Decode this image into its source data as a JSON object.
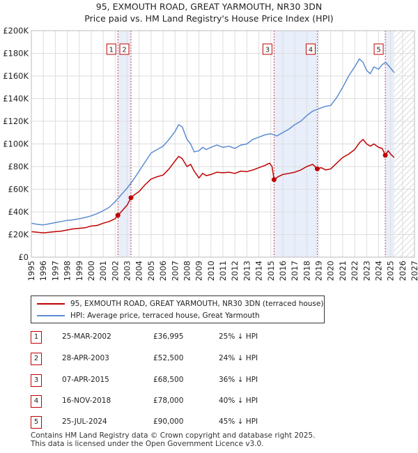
{
  "title_line1": "95, EXMOUTH ROAD, GREAT YARMOUTH, NR30 3DN",
  "title_line2": "Price paid vs. HM Land Registry's House Price Index (HPI)",
  "colors": {
    "hpi": "#5b8bd0",
    "price": "#c00000",
    "shade": "#e8eefa",
    "grid": "#dddddd"
  },
  "chart_data": {
    "type": "line",
    "title": "95, EXMOUTH ROAD, GREAT YARMOUTH, NR30 3DN — Price paid vs. HM Land Registry's House Price Index (HPI)",
    "xlabel": "",
    "ylabel": "",
    "xlim": [
      1995,
      2027
    ],
    "ylim": [
      0,
      200000
    ],
    "y_ticks": [
      0,
      20000,
      40000,
      60000,
      80000,
      100000,
      120000,
      140000,
      160000,
      180000,
      200000
    ],
    "y_tick_labels": [
      "£0",
      "£20K",
      "£40K",
      "£60K",
      "£80K",
      "£100K",
      "£120K",
      "£140K",
      "£160K",
      "£180K",
      "£200K"
    ],
    "x_ticks": [
      1995,
      1996,
      1997,
      1998,
      1999,
      2000,
      2001,
      2002,
      2003,
      2004,
      2005,
      2006,
      2007,
      2008,
      2009,
      2010,
      2011,
      2012,
      2013,
      2014,
      2015,
      2016,
      2017,
      2018,
      2019,
      2020,
      2021,
      2022,
      2023,
      2024,
      2025,
      2026,
      2027
    ],
    "x_tick_labels": [
      "1995",
      "1996",
      "1997",
      "1998",
      "1999",
      "2000",
      "2001",
      "2002",
      "2003",
      "2004",
      "2005",
      "2006",
      "2007",
      "2008",
      "2009",
      "2010",
      "2011",
      "2012",
      "2013",
      "2014",
      "2015",
      "2016",
      "2017",
      "2018",
      "2019",
      "2020",
      "2021",
      "2022",
      "2023",
      "2024",
      "2025",
      "2026",
      "2027"
    ],
    "shaded_spans": [
      [
        2002.23,
        2003.32
      ],
      [
        2015.27,
        2018.88
      ],
      [
        2024.56,
        2025.3
      ]
    ],
    "future_hatch_from": 2025.3,
    "series": [
      {
        "name": "95, EXMOUTH ROAD, GREAT YARMOUTH, NR30 3DN (terraced house)",
        "x": [
          1995.0,
          1995.5,
          1996.0,
          1996.5,
          1997.0,
          1997.5,
          1998.0,
          1998.5,
          1999.0,
          1999.5,
          2000.0,
          2000.5,
          2001.0,
          2001.5,
          2002.0,
          2002.23,
          2002.5,
          2003.0,
          2003.32,
          2003.6,
          2004.0,
          2004.5,
          2005.0,
          2005.5,
          2006.0,
          2006.5,
          2007.0,
          2007.3,
          2007.6,
          2008.0,
          2008.3,
          2008.6,
          2009.0,
          2009.3,
          2009.6,
          2010.0,
          2010.5,
          2011.0,
          2011.5,
          2012.0,
          2012.5,
          2013.0,
          2013.5,
          2014.0,
          2014.5,
          2014.9,
          2015.1,
          2015.27,
          2015.6,
          2016.0,
          2016.5,
          2017.0,
          2017.5,
          2018.0,
          2018.5,
          2018.88,
          2019.2,
          2019.6,
          2020.0,
          2020.5,
          2021.0,
          2021.5,
          2022.0,
          2022.4,
          2022.7,
          2023.0,
          2023.3,
          2023.6,
          2024.0,
          2024.3,
          2024.56,
          2024.8,
          2025.0,
          2025.3
        ],
        "values": [
          22500,
          22000,
          21500,
          22000,
          22500,
          23000,
          24000,
          25000,
          25500,
          26000,
          27500,
          28000,
          30000,
          31500,
          34000,
          36995,
          40000,
          46000,
          52500,
          55000,
          58000,
          64000,
          69000,
          71000,
          72500,
          78000,
          85000,
          89000,
          87000,
          80000,
          82000,
          76000,
          70000,
          74000,
          72000,
          73000,
          75000,
          74500,
          75000,
          74000,
          76000,
          75500,
          77000,
          79000,
          81000,
          83000,
          80000,
          68500,
          71000,
          73000,
          74000,
          75000,
          77000,
          80000,
          82000,
          78000,
          79000,
          77000,
          78000,
          83000,
          88000,
          91000,
          95000,
          101000,
          104000,
          100000,
          98000,
          100000,
          97000,
          96000,
          90000,
          94000,
          91000,
          88000
        ]
      },
      {
        "name": "HPI: Average price, terraced house, Great Yarmouth",
        "x": [
          1995.0,
          1995.5,
          1996.0,
          1996.5,
          1997.0,
          1997.5,
          1998.0,
          1998.5,
          1999.0,
          1999.5,
          2000.0,
          2000.5,
          2001.0,
          2001.5,
          2002.0,
          2002.5,
          2003.0,
          2003.5,
          2004.0,
          2004.5,
          2005.0,
          2005.5,
          2006.0,
          2006.5,
          2007.0,
          2007.3,
          2007.6,
          2008.0,
          2008.3,
          2008.6,
          2009.0,
          2009.3,
          2009.6,
          2010.0,
          2010.5,
          2011.0,
          2011.5,
          2012.0,
          2012.5,
          2013.0,
          2013.5,
          2014.0,
          2014.5,
          2015.0,
          2015.5,
          2016.0,
          2016.5,
          2017.0,
          2017.5,
          2018.0,
          2018.5,
          2019.0,
          2019.5,
          2020.0,
          2020.5,
          2021.0,
          2021.5,
          2022.0,
          2022.4,
          2022.7,
          2023.0,
          2023.3,
          2023.6,
          2024.0,
          2024.3,
          2024.6,
          2025.0,
          2025.3
        ],
        "values": [
          30000,
          29000,
          28500,
          29500,
          30500,
          31500,
          32500,
          33000,
          34000,
          35000,
          36500,
          38500,
          41000,
          44000,
          49000,
          55000,
          61000,
          68000,
          76000,
          84000,
          92000,
          95000,
          98000,
          104000,
          111000,
          117000,
          115000,
          104000,
          100000,
          93000,
          94000,
          97000,
          95000,
          97000,
          99000,
          97000,
          98000,
          96000,
          99000,
          100000,
          104000,
          106000,
          108000,
          109000,
          107000,
          110000,
          113000,
          117000,
          120000,
          125000,
          129000,
          131000,
          133000,
          134000,
          141000,
          150000,
          160000,
          168000,
          175000,
          172000,
          165000,
          162000,
          168000,
          166000,
          170000,
          172000,
          167000,
          163000
        ]
      }
    ],
    "transactions": [
      {
        "n": "1",
        "date": "25-MAR-2002",
        "year": 2002.23,
        "price": 36995,
        "price_label": "£36,995",
        "hpi_delta": "25% ↓ HPI"
      },
      {
        "n": "2",
        "date": "28-APR-2003",
        "year": 2003.32,
        "price": 52500,
        "price_label": "£52,500",
        "hpi_delta": "24% ↓ HPI"
      },
      {
        "n": "3",
        "date": "07-APR-2015",
        "year": 2015.27,
        "price": 68500,
        "price_label": "£68,500",
        "hpi_delta": "36% ↓ HPI"
      },
      {
        "n": "4",
        "date": "16-NOV-2018",
        "year": 2018.88,
        "price": 78000,
        "price_label": "£78,000",
        "hpi_delta": "40% ↓ HPI"
      },
      {
        "n": "5",
        "date": "25-JUL-2024",
        "year": 2024.56,
        "price": 90000,
        "price_label": "£90,000",
        "hpi_delta": "45% ↓ HPI"
      }
    ]
  },
  "legend": {
    "price_label": "95, EXMOUTH ROAD, GREAT YARMOUTH, NR30 3DN (terraced house)",
    "hpi_label": "HPI: Average price, terraced house, Great Yarmouth"
  },
  "footer_line1": "Contains HM Land Registry data © Crown copyright and database right 2025.",
  "footer_line2": "This data is licensed under the Open Government Licence v3.0."
}
